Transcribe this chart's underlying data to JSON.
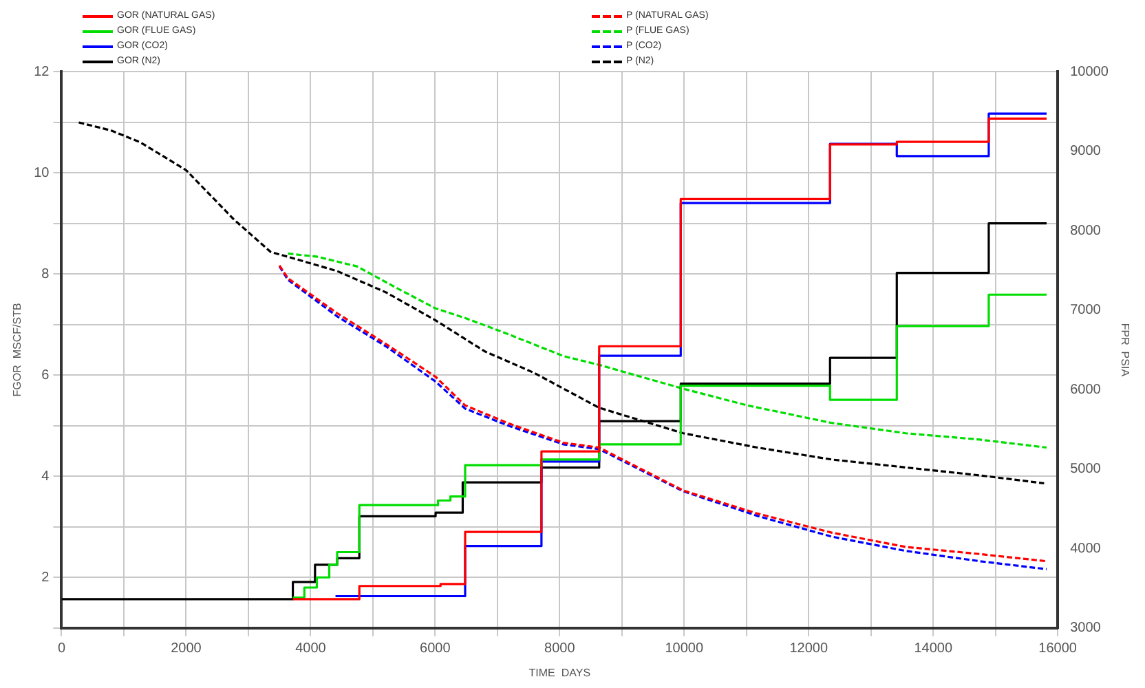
{
  "chart_data": {
    "type": "line",
    "xlabel": "TIME  DAYS",
    "ylabel": "FGOR  MSCF/STB",
    "y2label": "FPR  PSIA",
    "legend": "top",
    "grid": true,
    "marker": "none",
    "xlim": [
      0,
      16000
    ],
    "xticks": [
      0,
      {
        "value": 1000,
        "label": null
      },
      2000,
      {
        "value": 3000,
        "label": null
      },
      4000,
      {
        "value": 5000,
        "label": null
      },
      6000,
      {
        "value": 7000,
        "label": null
      },
      8000,
      {
        "value": 9000,
        "label": null
      },
      10000,
      {
        "value": 11000,
        "label": null
      },
      12000,
      {
        "value": 13000,
        "label": null
      },
      14000,
      {
        "value": 15000,
        "label": null
      },
      16000
    ],
    "ylim": [
      1,
      12
    ],
    "yticks": [
      {
        "value": 1,
        "label": null
      },
      2,
      {
        "value": 3,
        "label": null
      },
      4,
      {
        "value": 5,
        "label": null
      },
      6,
      {
        "value": 7,
        "label": null
      },
      8,
      {
        "value": 9,
        "label": null
      },
      10,
      {
        "value": 11,
        "label": null
      },
      12
    ],
    "y2lim": [
      3000,
      10000
    ],
    "y2ticks": [
      3000,
      4000,
      5000,
      6000,
      7000,
      8000,
      9000,
      10000
    ],
    "series": [
      {
        "name": "GOR  (NATURAL GAS)",
        "color": "#ff0000",
        "type": "step",
        "line_style": "solid",
        "x": [
          3715,
          4783,
          6087,
          6482,
          7708,
          8635,
          9945,
          12343,
          13415,
          14892,
          15821
        ],
        "values": [
          1.57,
          1.83,
          1.87,
          2.9,
          4.49,
          6.57,
          9.48,
          10.56,
          10.61,
          11.07,
          11.07
        ]
      },
      {
        "name": "GOR  (FLUE GAS)",
        "color": "#00dd00",
        "type": "step",
        "line_style": "solid",
        "x": [
          3715,
          3900,
          4100,
          4300,
          4427,
          4783,
          6047,
          6245,
          6482,
          7708,
          8635,
          9945,
          12343,
          13415,
          14892,
          15821
        ],
        "values": [
          1.6,
          1.8,
          2.0,
          2.25,
          2.5,
          3.43,
          3.52,
          3.6,
          4.22,
          4.33,
          4.63,
          5.79,
          5.51,
          6.97,
          7.59,
          7.59
        ]
      },
      {
        "name": "GOR  (CO2)",
        "color": "#0000ff",
        "type": "step",
        "line_style": "solid",
        "x": [
          4400,
          6482,
          7708,
          8635,
          9945,
          12343,
          13415,
          14892,
          15821
        ],
        "values": [
          1.63,
          2.62,
          4.29,
          6.38,
          9.4,
          10.57,
          10.33,
          11.17,
          11.17
        ]
      },
      {
        "name": "GOR  (N2)",
        "color": "#000000",
        "type": "step",
        "line_style": "solid",
        "x": [
          0,
          3715,
          4071,
          4427,
          4783,
          6008,
          6443,
          7708,
          8635,
          9945,
          12343,
          13415,
          14892,
          15821
        ],
        "values": [
          1.57,
          1.91,
          2.25,
          2.38,
          3.21,
          3.28,
          3.88,
          4.17,
          5.09,
          5.83,
          6.34,
          8.02,
          9.0,
          9.0
        ]
      },
      {
        "name": "P  (NATURAL GAS)",
        "color": "#ff0000",
        "type": "line",
        "axis": "y2",
        "line_style": "dashed",
        "x": [
          3500,
          3636,
          4427,
          5217,
          6008,
          6482,
          7194,
          8063,
          8635,
          9985,
          11176,
          12367,
          13558,
          14749,
          15821
        ],
        "values": [
          7560,
          7400,
          6960,
          6570,
          6160,
          5800,
          5570,
          5330,
          5270,
          4730,
          4440,
          4200,
          4020,
          3930,
          3840
        ]
      },
      {
        "name": "P  (FLUE GAS)",
        "color": "#00dd00",
        "type": "line",
        "axis": "y2",
        "line_style": "dashed",
        "x": [
          3636,
          4111,
          4743,
          5375,
          6008,
          6482,
          7194,
          8063,
          8635,
          9985,
          11017,
          12367,
          13558,
          14749,
          15821
        ],
        "values": [
          7710,
          7670,
          7550,
          7280,
          7020,
          6900,
          6690,
          6420,
          6310,
          6010,
          5800,
          5580,
          5450,
          5370,
          5270
        ]
      },
      {
        "name": "P  (CO2)",
        "color": "#0000ff",
        "type": "line",
        "axis": "y2",
        "line_style": "dashed",
        "x": [
          3500,
          3636,
          4427,
          5217,
          6008,
          6482,
          7194,
          8063,
          8635,
          9985,
          11176,
          12367,
          13558,
          14749,
          15821
        ],
        "values": [
          7550,
          7380,
          6920,
          6540,
          6100,
          5760,
          5540,
          5310,
          5250,
          4720,
          4410,
          4150,
          3970,
          3840,
          3740
        ]
      },
      {
        "name": "P  (N2)",
        "color": "#000000",
        "type": "line",
        "axis": "y2",
        "line_style": "dashed",
        "x": [
          277,
          790,
          1265,
          2000,
          2767,
          3360,
          3636,
          4427,
          5217,
          6008,
          6798,
          7589,
          8635,
          9985,
          11176,
          12367,
          13558,
          14749,
          15781
        ],
        "values": [
          9360,
          9260,
          9110,
          8760,
          8140,
          7730,
          7670,
          7490,
          7220,
          6870,
          6480,
          6210,
          5770,
          5450,
          5270,
          5120,
          5020,
          4920,
          4820
        ]
      }
    ]
  }
}
